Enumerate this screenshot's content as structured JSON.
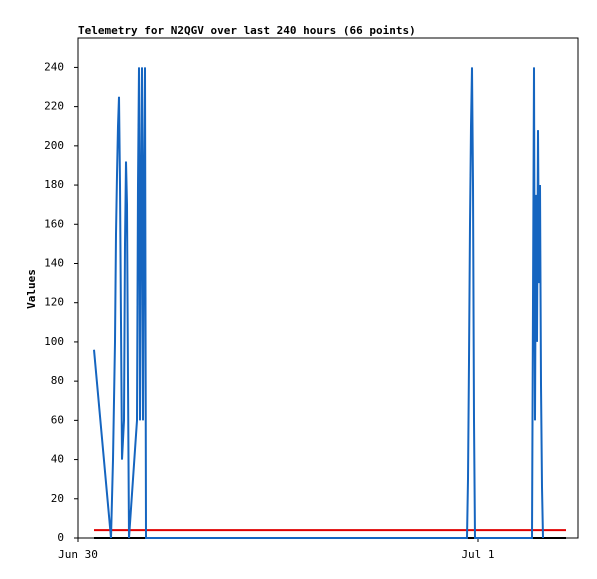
{
  "chart_data": {
    "type": "line",
    "title": "Telemetry for N2QGV over last 240 hours (66 points)",
    "y_label": "Values",
    "xlim": [
      0,
      30
    ],
    "xticks": [
      {
        "value": 0,
        "label": "Jun 30"
      },
      {
        "value": 24,
        "label": "Jul 1"
      }
    ],
    "ylim": [
      0,
      255
    ],
    "yticks": [
      0,
      20,
      40,
      60,
      80,
      100,
      120,
      140,
      160,
      180,
      200,
      220,
      240
    ],
    "series": [
      {
        "color": "#1565c0",
        "x": [
          0.96,
          1.98,
          2.1,
          2.16,
          2.22,
          2.28,
          2.34,
          2.4,
          2.46,
          2.52,
          2.58,
          2.64,
          2.76,
          2.82,
          2.88,
          2.94,
          3.0,
          3.06,
          3.54,
          3.6,
          3.66,
          3.72,
          3.78,
          3.84,
          3.9,
          3.96,
          4.02,
          4.08,
          23.34,
          23.4,
          23.46,
          23.52,
          23.58,
          23.64,
          23.7,
          23.76,
          23.82,
          27.24,
          27.3,
          27.36,
          27.42,
          27.48,
          27.54,
          27.6,
          27.66,
          27.72,
          27.78,
          27.84,
          27.9
        ],
        "values": [
          96,
          0,
          40,
          70,
          100,
          155,
          185,
          210,
          225,
          180,
          110,
          40,
          60,
          150,
          192,
          170,
          80,
          0,
          60,
          180,
          240,
          60,
          180,
          240,
          60,
          180,
          240,
          0,
          0,
          30,
          90,
          160,
          210,
          240,
          180,
          60,
          0,
          0,
          120,
          240,
          60,
          175,
          100,
          208,
          130,
          180,
          78,
          26,
          0
        ]
      },
      {
        "color": "#e00000",
        "x": [
          0.96,
          29.28
        ],
        "values": [
          4,
          4
        ]
      },
      {
        "color": "#000000",
        "x": [
          0.96,
          29.28
        ],
        "values": [
          0,
          0
        ]
      }
    ]
  }
}
